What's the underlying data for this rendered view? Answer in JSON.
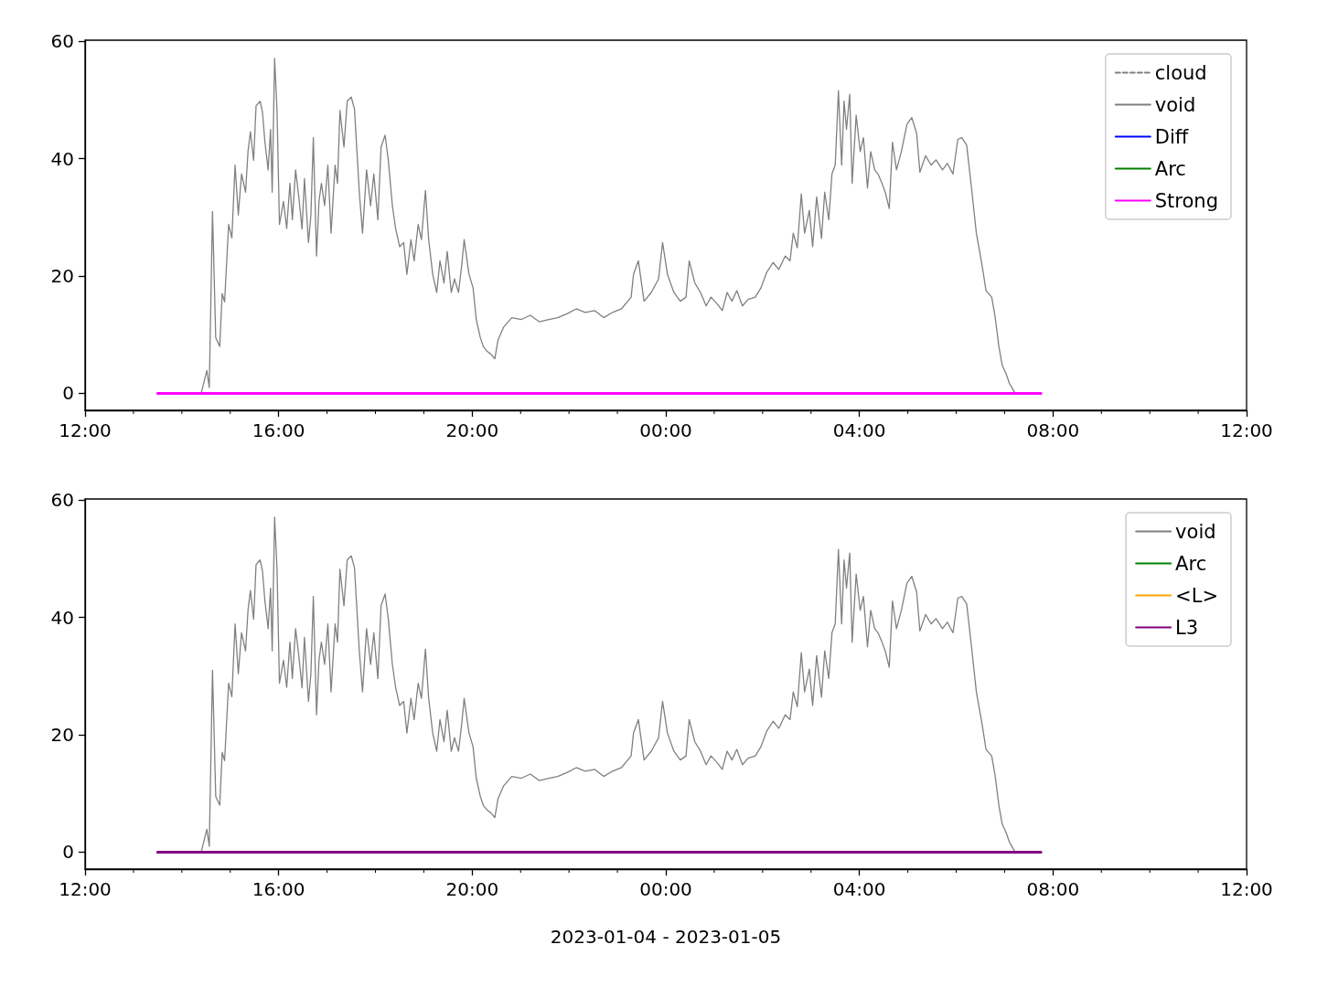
{
  "chart_data": [
    {
      "type": "line",
      "xlim": [
        "2023-01-04T12:00",
        "2023-01-05T12:00"
      ],
      "xticks": [
        {
          "value": "2023-01-04T12:00",
          "label": "12:00"
        },
        {
          "value": "2023-01-04T16:00",
          "label": "16:00"
        },
        {
          "value": "2023-01-04T20:00",
          "label": "20:00"
        },
        {
          "value": "2023-01-05T00:00",
          "label": "00:00"
        },
        {
          "value": "2023-01-05T04:00",
          "label": "04:00"
        },
        {
          "value": "2023-01-05T08:00",
          "label": "08:00"
        },
        {
          "value": "2023-01-05T12:00",
          "label": "12:00"
        }
      ],
      "ylim": [
        -2.9,
        60.2
      ],
      "yticks": [
        0,
        20,
        40,
        60
      ],
      "legend": "top right",
      "grid": false,
      "series": [
        {
          "name": "cloud",
          "color": "#808080",
          "line_style": "dashed"
        },
        {
          "name": "void",
          "color": "#808080",
          "x": [
            "2023-01-04T14:24",
            "2023-01-04T14:31",
            "2023-01-04T14:34",
            "2023-01-04T14:38",
            "2023-01-04T14:42",
            "2023-01-04T14:47",
            "2023-01-04T14:50",
            "2023-01-04T14:53",
            "2023-01-04T14:58",
            "2023-01-04T15:02",
            "2023-01-04T15:06",
            "2023-01-04T15:10",
            "2023-01-04T15:14",
            "2023-01-04T15:19",
            "2023-01-04T15:22",
            "2023-01-04T15:25",
            "2023-01-04T15:29",
            "2023-01-04T15:32",
            "2023-01-04T15:37",
            "2023-01-04T15:40",
            "2023-01-04T15:43",
            "2023-01-04T15:47",
            "2023-01-04T15:50",
            "2023-01-04T15:52",
            "2023-01-04T15:55",
            "2023-01-04T15:58",
            "2023-01-04T16:01",
            "2023-01-04T16:06",
            "2023-01-04T16:10",
            "2023-01-04T16:14",
            "2023-01-04T16:17",
            "2023-01-04T16:21",
            "2023-01-04T16:25",
            "2023-01-04T16:29",
            "2023-01-04T16:32",
            "2023-01-04T16:37",
            "2023-01-04T16:40",
            "2023-01-04T16:43",
            "2023-01-04T16:47",
            "2023-01-04T16:50",
            "2023-01-04T16:53",
            "2023-01-04T16:57",
            "2023-01-04T17:01",
            "2023-01-04T17:05",
            "2023-01-04T17:10",
            "2023-01-04T17:13",
            "2023-01-04T17:16",
            "2023-01-04T17:21",
            "2023-01-04T17:25",
            "2023-01-04T17:30",
            "2023-01-04T17:34",
            "2023-01-04T17:40",
            "2023-01-04T17:44",
            "2023-01-04T17:49",
            "2023-01-04T17:54",
            "2023-01-04T17:58",
            "2023-01-04T18:03",
            "2023-01-04T18:07",
            "2023-01-04T18:12",
            "2023-01-04T18:16",
            "2023-01-04T18:21",
            "2023-01-04T18:25",
            "2023-01-04T18:30",
            "2023-01-04T18:35",
            "2023-01-04T18:39",
            "2023-01-04T18:44",
            "2023-01-04T18:48",
            "2023-01-04T18:53",
            "2023-01-04T18:57",
            "2023-01-04T19:02",
            "2023-01-04T19:06",
            "2023-01-04T19:11",
            "2023-01-04T19:16",
            "2023-01-04T19:20",
            "2023-01-04T19:25",
            "2023-01-04T19:29",
            "2023-01-04T19:34",
            "2023-01-04T19:38",
            "2023-01-04T19:43",
            "2023-01-04T19:47",
            "2023-01-04T19:50",
            "2023-01-04T19:56",
            "2023-01-04T20:01",
            "2023-01-04T20:05",
            "2023-01-04T20:10",
            "2023-01-04T20:14",
            "2023-01-04T20:19",
            "2023-01-04T20:23",
            "2023-01-04T20:28",
            "2023-01-04T20:32",
            "2023-01-04T20:39",
            "2023-01-04T20:49",
            "2023-01-04T21:01",
            "2023-01-04T21:12",
            "2023-01-04T21:23",
            "2023-01-04T21:35",
            "2023-01-04T21:46",
            "2023-01-04T21:58",
            "2023-01-04T22:09",
            "2023-01-04T22:20",
            "2023-01-04T22:32",
            "2023-01-04T22:43",
            "2023-01-04T22:54",
            "2023-01-04T23:05",
            "2023-01-04T23:17",
            "2023-01-04T23:20",
            "2023-01-04T23:26",
            "2023-01-04T23:33",
            "2023-01-04T23:42",
            "2023-01-04T23:51",
            "2023-01-04T23:56",
            "2023-01-05T00:02",
            "2023-01-05T00:10",
            "2023-01-05T00:18",
            "2023-01-05T00:25",
            "2023-01-05T00:29",
            "2023-01-05T00:36",
            "2023-01-05T00:43",
            "2023-01-05T00:50",
            "2023-01-05T00:56",
            "2023-01-05T01:04",
            "2023-01-05T01:10",
            "2023-01-05T01:16",
            "2023-01-05T01:22",
            "2023-01-05T01:28",
            "2023-01-05T01:35",
            "2023-01-05T01:42",
            "2023-01-05T01:51",
            "2023-01-05T01:58",
            "2023-01-05T02:05",
            "2023-01-05T02:13",
            "2023-01-05T02:20",
            "2023-01-05T02:28",
            "2023-01-05T02:34",
            "2023-01-05T02:38",
            "2023-01-05T02:43",
            "2023-01-05T02:48",
            "2023-01-05T02:52",
            "2023-01-05T02:58",
            "2023-01-05T03:02",
            "2023-01-05T03:07",
            "2023-01-05T03:13",
            "2023-01-05T03:17",
            "2023-01-05T03:22",
            "2023-01-05T03:26",
            "2023-01-05T03:30",
            "2023-01-05T03:34",
            "2023-01-05T03:38",
            "2023-01-05T03:41",
            "2023-01-05T03:44",
            "2023-01-05T03:48",
            "2023-01-05T03:51",
            "2023-01-05T03:56",
            "2023-01-05T04:01",
            "2023-01-05T04:05",
            "2023-01-05T04:10",
            "2023-01-05T04:14",
            "2023-01-05T04:19",
            "2023-01-05T04:23",
            "2023-01-05T04:28",
            "2023-01-05T04:32",
            "2023-01-05T04:37",
            "2023-01-05T04:41",
            "2023-01-05T04:46",
            "2023-01-05T04:52",
            "2023-01-05T04:59",
            "2023-01-05T05:05",
            "2023-01-05T05:11",
            "2023-01-05T05:15",
            "2023-01-05T05:22",
            "2023-01-05T05:29",
            "2023-01-05T05:35",
            "2023-01-05T05:43",
            "2023-01-05T05:49",
            "2023-01-05T05:56",
            "2023-01-05T06:02",
            "2023-01-05T06:07",
            "2023-01-05T06:13",
            "2023-01-05T06:19",
            "2023-01-05T06:25",
            "2023-01-05T06:32",
            "2023-01-05T06:37",
            "2023-01-05T06:44",
            "2023-01-05T06:48",
            "2023-01-05T06:53",
            "2023-01-05T06:57",
            "2023-01-05T07:02",
            "2023-01-05T07:06",
            "2023-01-05T07:11",
            "2023-01-05T07:13"
          ],
          "values": [
            0,
            3.9,
            1,
            31,
            9.5,
            8,
            17,
            15.6,
            28.8,
            26.5,
            38.9,
            30.4,
            37.4,
            34.3,
            41.2,
            44.6,
            39.7,
            49,
            49.8,
            47.9,
            42.8,
            38.1,
            45,
            34.3,
            57.1,
            48.2,
            28.8,
            32.7,
            28.1,
            35.8,
            29.6,
            38.1,
            33.5,
            28,
            36.6,
            25.7,
            30.4,
            43.6,
            23.4,
            32.7,
            35.8,
            32,
            38.9,
            27.3,
            38.9,
            35.8,
            48.2,
            42,
            49.8,
            50.5,
            48.5,
            34.3,
            27.3,
            38.1,
            32,
            37.4,
            29.6,
            42,
            44,
            39.7,
            32,
            28.1,
            25,
            25.7,
            20.3,
            26.2,
            22.6,
            28.8,
            26.2,
            34.6,
            26.2,
            20.3,
            17.2,
            22.6,
            18.8,
            24.2,
            17.2,
            19.5,
            17.2,
            21.9,
            26.2,
            20.3,
            18,
            12.6,
            9.5,
            7.9,
            7.1,
            6.7,
            5.9,
            9.1,
            11.3,
            12.9,
            12.6,
            13.3,
            12.2,
            12.6,
            12.9,
            13.6,
            14.4,
            13.8,
            14.1,
            12.9,
            13.8,
            14.4,
            16.4,
            20.3,
            22.6,
            15.7,
            17.2,
            19.5,
            25.7,
            20.3,
            17.2,
            15.7,
            16.4,
            22.6,
            18.8,
            17.2,
            14.9,
            16.4,
            15.2,
            14.1,
            17.2,
            15.7,
            17.5,
            14.9,
            16,
            16.4,
            18,
            20.6,
            22.3,
            21.1,
            23.4,
            22.6,
            27.3,
            24.8,
            34,
            27.3,
            31.2,
            25,
            33.5,
            26.4,
            34.3,
            29.6,
            37.4,
            38.9,
            51.6,
            38.9,
            49.8,
            45,
            51,
            35.8,
            47.4,
            41.2,
            43.6,
            35,
            41.2,
            38.1,
            37.4,
            35.8,
            34.3,
            31.5,
            42.8,
            38.1,
            41.2,
            45.9,
            47,
            44.3,
            37.7,
            40.5,
            38.9,
            39.8,
            38.1,
            39.2,
            37.4,
            43.3,
            43.6,
            42.3,
            35,
            27.3,
            21.9,
            17.5,
            16.4,
            13.3,
            7.9,
            4.8,
            3.3,
            1.7,
            0.5,
            0
          ]
        },
        {
          "name": "Diff",
          "color": "#0000ff"
        },
        {
          "name": "Arc",
          "color": "#008000"
        },
        {
          "name": "Strong",
          "color": "#ff00ff",
          "x": [
            "2023-01-04T13:30",
            "2023-01-05T07:45"
          ],
          "values": [
            0,
            0
          ]
        }
      ]
    },
    {
      "type": "line",
      "xlabel": "2023-01-04 - 2023-01-05",
      "xlim": [
        "2023-01-04T12:00",
        "2023-01-05T12:00"
      ],
      "xticks": [
        {
          "value": "2023-01-04T12:00",
          "label": "12:00"
        },
        {
          "value": "2023-01-04T16:00",
          "label": "16:00"
        },
        {
          "value": "2023-01-04T20:00",
          "label": "20:00"
        },
        {
          "value": "2023-01-05T00:00",
          "label": "00:00"
        },
        {
          "value": "2023-01-05T04:00",
          "label": "04:00"
        },
        {
          "value": "2023-01-05T08:00",
          "label": "08:00"
        },
        {
          "value": "2023-01-05T12:00",
          "label": "12:00"
        }
      ],
      "ylim": [
        -2.9,
        60.2
      ],
      "yticks": [
        0,
        20,
        40,
        60
      ],
      "legend": "top right",
      "grid": false,
      "series": [
        {
          "name": "void",
          "color": "#808080",
          "x": [
            "2023-01-04T14:24",
            "2023-01-04T14:31",
            "2023-01-04T14:34",
            "2023-01-04T14:38",
            "2023-01-04T14:42",
            "2023-01-04T14:47",
            "2023-01-04T14:50",
            "2023-01-04T14:53",
            "2023-01-04T14:58",
            "2023-01-04T15:02",
            "2023-01-04T15:06",
            "2023-01-04T15:10",
            "2023-01-04T15:14",
            "2023-01-04T15:19",
            "2023-01-04T15:22",
            "2023-01-04T15:25",
            "2023-01-04T15:29",
            "2023-01-04T15:32",
            "2023-01-04T15:37",
            "2023-01-04T15:40",
            "2023-01-04T15:43",
            "2023-01-04T15:47",
            "2023-01-04T15:50",
            "2023-01-04T15:52",
            "2023-01-04T15:55",
            "2023-01-04T15:58",
            "2023-01-04T16:01",
            "2023-01-04T16:06",
            "2023-01-04T16:10",
            "2023-01-04T16:14",
            "2023-01-04T16:17",
            "2023-01-04T16:21",
            "2023-01-04T16:25",
            "2023-01-04T16:29",
            "2023-01-04T16:32",
            "2023-01-04T16:37",
            "2023-01-04T16:40",
            "2023-01-04T16:43",
            "2023-01-04T16:47",
            "2023-01-04T16:50",
            "2023-01-04T16:53",
            "2023-01-04T16:57",
            "2023-01-04T17:01",
            "2023-01-04T17:05",
            "2023-01-04T17:10",
            "2023-01-04T17:13",
            "2023-01-04T17:16",
            "2023-01-04T17:21",
            "2023-01-04T17:25",
            "2023-01-04T17:30",
            "2023-01-04T17:34",
            "2023-01-04T17:40",
            "2023-01-04T17:44",
            "2023-01-04T17:49",
            "2023-01-04T17:54",
            "2023-01-04T17:58",
            "2023-01-04T18:03",
            "2023-01-04T18:07",
            "2023-01-04T18:12",
            "2023-01-04T18:16",
            "2023-01-04T18:21",
            "2023-01-04T18:25",
            "2023-01-04T18:30",
            "2023-01-04T18:35",
            "2023-01-04T18:39",
            "2023-01-04T18:44",
            "2023-01-04T18:48",
            "2023-01-04T18:53",
            "2023-01-04T18:57",
            "2023-01-04T19:02",
            "2023-01-04T19:06",
            "2023-01-04T19:11",
            "2023-01-04T19:16",
            "2023-01-04T19:20",
            "2023-01-04T19:25",
            "2023-01-04T19:29",
            "2023-01-04T19:34",
            "2023-01-04T19:38",
            "2023-01-04T19:43",
            "2023-01-04T19:47",
            "2023-01-04T19:50",
            "2023-01-04T19:56",
            "2023-01-04T20:01",
            "2023-01-04T20:05",
            "2023-01-04T20:10",
            "2023-01-04T20:14",
            "2023-01-04T20:19",
            "2023-01-04T20:23",
            "2023-01-04T20:28",
            "2023-01-04T20:32",
            "2023-01-04T20:39",
            "2023-01-04T20:49",
            "2023-01-04T21:01",
            "2023-01-04T21:12",
            "2023-01-04T21:23",
            "2023-01-04T21:35",
            "2023-01-04T21:46",
            "2023-01-04T21:58",
            "2023-01-04T22:09",
            "2023-01-04T22:20",
            "2023-01-04T22:32",
            "2023-01-04T22:43",
            "2023-01-04T22:54",
            "2023-01-04T23:05",
            "2023-01-04T23:17",
            "2023-01-04T23:20",
            "2023-01-04T23:26",
            "2023-01-04T23:33",
            "2023-01-04T23:42",
            "2023-01-04T23:51",
            "2023-01-04T23:56",
            "2023-01-05T00:02",
            "2023-01-05T00:10",
            "2023-01-05T00:18",
            "2023-01-05T00:25",
            "2023-01-05T00:29",
            "2023-01-05T00:36",
            "2023-01-05T00:43",
            "2023-01-05T00:50",
            "2023-01-05T00:56",
            "2023-01-05T01:04",
            "2023-01-05T01:10",
            "2023-01-05T01:16",
            "2023-01-05T01:22",
            "2023-01-05T01:28",
            "2023-01-05T01:35",
            "2023-01-05T01:42",
            "2023-01-05T01:51",
            "2023-01-05T01:58",
            "2023-01-05T02:05",
            "2023-01-05T02:13",
            "2023-01-05T02:20",
            "2023-01-05T02:28",
            "2023-01-05T02:34",
            "2023-01-05T02:38",
            "2023-01-05T02:43",
            "2023-01-05T02:48",
            "2023-01-05T02:52",
            "2023-01-05T02:58",
            "2023-01-05T03:02",
            "2023-01-05T03:07",
            "2023-01-05T03:13",
            "2023-01-05T03:17",
            "2023-01-05T03:22",
            "2023-01-05T03:26",
            "2023-01-05T03:30",
            "2023-01-05T03:34",
            "2023-01-05T03:38",
            "2023-01-05T03:41",
            "2023-01-05T03:44",
            "2023-01-05T03:48",
            "2023-01-05T03:51",
            "2023-01-05T03:56",
            "2023-01-05T04:01",
            "2023-01-05T04:05",
            "2023-01-05T04:10",
            "2023-01-05T04:14",
            "2023-01-05T04:19",
            "2023-01-05T04:23",
            "2023-01-05T04:28",
            "2023-01-05T04:32",
            "2023-01-05T04:37",
            "2023-01-05T04:41",
            "2023-01-05T04:46",
            "2023-01-05T04:52",
            "2023-01-05T04:59",
            "2023-01-05T05:05",
            "2023-01-05T05:11",
            "2023-01-05T05:15",
            "2023-01-05T05:22",
            "2023-01-05T05:29",
            "2023-01-05T05:35",
            "2023-01-05T05:43",
            "2023-01-05T05:49",
            "2023-01-05T05:56",
            "2023-01-05T06:02",
            "2023-01-05T06:07",
            "2023-01-05T06:13",
            "2023-01-05T06:19",
            "2023-01-05T06:25",
            "2023-01-05T06:32",
            "2023-01-05T06:37",
            "2023-01-05T06:44",
            "2023-01-05T06:48",
            "2023-01-05T06:53",
            "2023-01-05T06:57",
            "2023-01-05T07:02",
            "2023-01-05T07:06",
            "2023-01-05T07:11",
            "2023-01-05T07:13"
          ],
          "values": [
            0,
            3.9,
            1,
            31,
            9.5,
            8,
            17,
            15.6,
            28.8,
            26.5,
            38.9,
            30.4,
            37.4,
            34.3,
            41.2,
            44.6,
            39.7,
            49,
            49.8,
            47.9,
            42.8,
            38.1,
            45,
            34.3,
            57.1,
            48.2,
            28.8,
            32.7,
            28.1,
            35.8,
            29.6,
            38.1,
            33.5,
            28,
            36.6,
            25.7,
            30.4,
            43.6,
            23.4,
            32.7,
            35.8,
            32,
            38.9,
            27.3,
            38.9,
            35.8,
            48.2,
            42,
            49.8,
            50.5,
            48.5,
            34.3,
            27.3,
            38.1,
            32,
            37.4,
            29.6,
            42,
            44,
            39.7,
            32,
            28.1,
            25,
            25.7,
            20.3,
            26.2,
            22.6,
            28.8,
            26.2,
            34.6,
            26.2,
            20.3,
            17.2,
            22.6,
            18.8,
            24.2,
            17.2,
            19.5,
            17.2,
            21.9,
            26.2,
            20.3,
            18,
            12.6,
            9.5,
            7.9,
            7.1,
            6.7,
            5.9,
            9.1,
            11.3,
            12.9,
            12.6,
            13.3,
            12.2,
            12.6,
            12.9,
            13.6,
            14.4,
            13.8,
            14.1,
            12.9,
            13.8,
            14.4,
            16.4,
            20.3,
            22.6,
            15.7,
            17.2,
            19.5,
            25.7,
            20.3,
            17.2,
            15.7,
            16.4,
            22.6,
            18.8,
            17.2,
            14.9,
            16.4,
            15.2,
            14.1,
            17.2,
            15.7,
            17.5,
            14.9,
            16,
            16.4,
            18,
            20.6,
            22.3,
            21.1,
            23.4,
            22.6,
            27.3,
            24.8,
            34,
            27.3,
            31.2,
            25,
            33.5,
            26.4,
            34.3,
            29.6,
            37.4,
            38.9,
            51.6,
            38.9,
            49.8,
            45,
            51,
            35.8,
            47.4,
            41.2,
            43.6,
            35,
            41.2,
            38.1,
            37.4,
            35.8,
            34.3,
            31.5,
            42.8,
            38.1,
            41.2,
            45.9,
            47,
            44.3,
            37.7,
            40.5,
            38.9,
            39.8,
            38.1,
            39.2,
            37.4,
            43.3,
            43.6,
            42.3,
            35,
            27.3,
            21.9,
            17.5,
            16.4,
            13.3,
            7.9,
            4.8,
            3.3,
            1.7,
            0.5,
            0
          ]
        },
        {
          "name": "Arc",
          "color": "#008000"
        },
        {
          "name": "<L>",
          "color": "#ffa500"
        },
        {
          "name": "L3",
          "color": "#800080",
          "x": [
            "2023-01-04T13:30",
            "2023-01-05T07:45"
          ],
          "values": [
            0,
            0
          ]
        }
      ]
    }
  ]
}
